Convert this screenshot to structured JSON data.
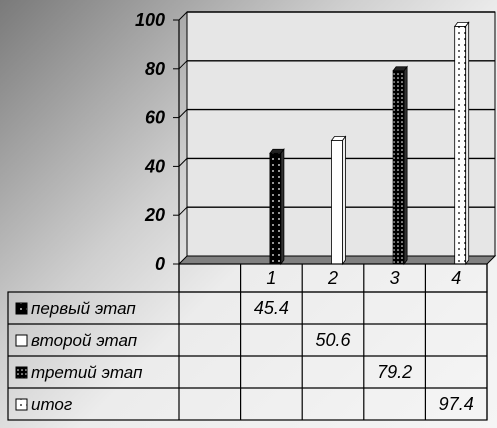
{
  "chart_data": {
    "type": "bar",
    "categories": [
      "1",
      "2",
      "3",
      "4"
    ],
    "series": [
      {
        "name": "первый этап",
        "values": [
          45.4,
          null,
          null,
          null
        ],
        "pattern": "black-dots",
        "label_col": 0
      },
      {
        "name": "второй этап",
        "values": [
          null,
          50.6,
          null,
          null
        ],
        "pattern": "white",
        "label_col": 1
      },
      {
        "name": "третий этап",
        "values": [
          null,
          null,
          79.2,
          null
        ],
        "pattern": "black-dense-dots",
        "label_col": 2
      },
      {
        "name": "итог",
        "values": [
          null,
          null,
          null,
          97.4
        ],
        "pattern": "white-dots",
        "label_col": 3
      }
    ],
    "y_ticks": [
      "0",
      "20",
      "40",
      "60",
      "80",
      "100"
    ],
    "ylim": [
      0,
      100
    ],
    "grid": true,
    "data_table": true,
    "colors": {
      "line": "#000000",
      "plot_bg": "#e6e6e6",
      "floor": "#808080"
    }
  }
}
